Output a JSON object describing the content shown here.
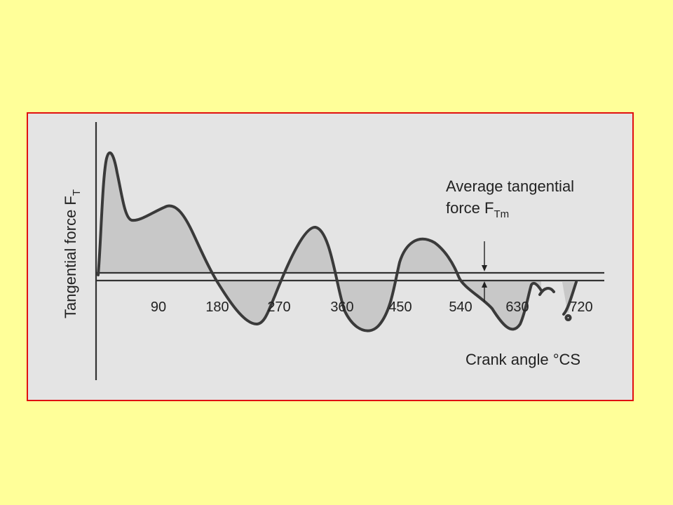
{
  "figure": {
    "y_axis_label_main": "Tangential force F",
    "y_axis_label_sub": "T",
    "x_axis_label": "Crank angle °CS",
    "annotation_line1": "Average tangential",
    "annotation_line2_main": "force F",
    "annotation_line2_sub": "Tm",
    "x_ticks": [
      "90",
      "180",
      "270",
      "360",
      "450",
      "540",
      "630",
      "720"
    ]
  },
  "colors": {
    "slide_background": "#ffff99",
    "frame_border": "#e01010",
    "figure_background": "#e4e4e4",
    "curve": "#3a3a3a",
    "fill": "#c8c8c8"
  }
}
